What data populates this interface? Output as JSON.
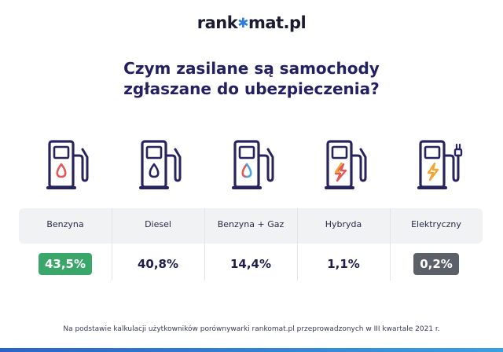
{
  "brand": {
    "pre": "rank",
    "post": "mat.pl"
  },
  "title": {
    "line1": "Czym zasilane są samochody",
    "line2": "zgłaszane do ubezpieczenia?"
  },
  "colors": {
    "navy": "#27235f",
    "red_drop": "#e25858",
    "blue_drop": "#4aa3df",
    "orange_bolt": "#f2a532",
    "highlight_top": "#3aa66a",
    "highlight_low": "#5c6068"
  },
  "chart_data": {
    "type": "table",
    "categories": [
      "Benzyna",
      "Diesel",
      "Benzyna + Gaz",
      "Hybryda",
      "Elektryczny"
    ],
    "values": [
      43.5,
      40.8,
      14.4,
      1.1,
      0.2
    ],
    "value_labels": [
      "43,5%",
      "40,8%",
      "14,4%",
      "1,1%",
      "0,2%"
    ],
    "icons": [
      "fuel-pump-red-drop-icon",
      "fuel-pump-navy-drop-icon",
      "fuel-pump-dual-drop-icon",
      "fuel-pump-bolt-icon",
      "charger-bolt-plug-icon"
    ],
    "highlight_max": "Benzyna",
    "highlight_min": "Elektryczny"
  },
  "footnote": "Na podstawie kalkulacji użytkowników porównywarki rankomat.pl przeprowadzonych w III kwartale 2021 r."
}
